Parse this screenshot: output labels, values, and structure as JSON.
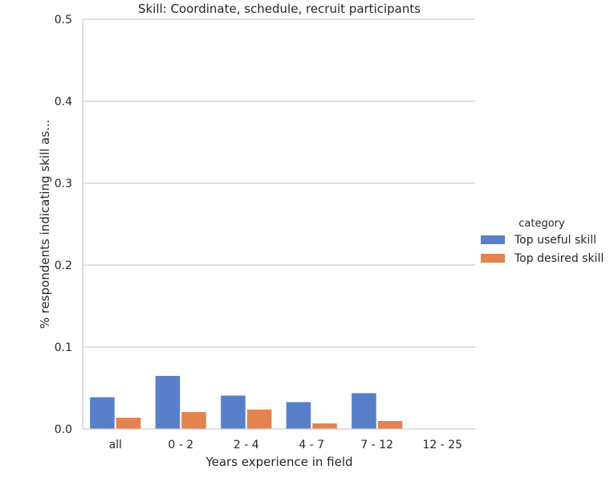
{
  "chart_data": {
    "type": "bar",
    "title": "Skill: Coordinate, schedule, recruit participants",
    "xlabel": "Years experience in field",
    "ylabel": "% respondents indicating skill as...",
    "categories": [
      "all",
      "0 - 2",
      "2 - 4",
      "4 - 7",
      "7 - 12",
      "12 - 25"
    ],
    "series": [
      {
        "name": "Top useful skill",
        "color": "#5a7fc9",
        "values": [
          0.039,
          0.065,
          0.041,
          0.033,
          0.044,
          0.0
        ]
      },
      {
        "name": "Top desired skill",
        "color": "#e1844f",
        "values": [
          0.014,
          0.021,
          0.024,
          0.007,
          0.01,
          0.0
        ]
      }
    ],
    "ylim": [
      0,
      0.5
    ],
    "yticks": [
      "0.0",
      "0.1",
      "0.2",
      "0.3",
      "0.4",
      "0.5"
    ],
    "grid": "horizontal",
    "legend": {
      "title": "category",
      "placement": "right"
    }
  }
}
